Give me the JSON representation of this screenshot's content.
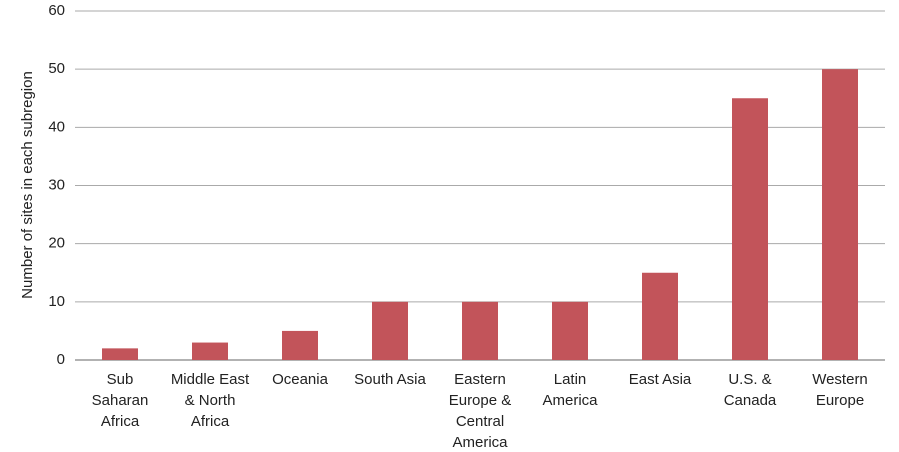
{
  "chart_data": {
    "type": "bar",
    "y_label": "Number of sites in each subregion",
    "categories": [
      "Sub Saharan Africa",
      "Middle East & North Africa",
      "Oceania",
      "South Asia",
      "Eastern Europe & Central America",
      "Latin America",
      "East Asia",
      "U.S. & Canada",
      "Western Europe"
    ],
    "values": [
      2,
      3,
      5,
      10,
      10,
      10,
      15,
      45,
      50
    ],
    "color": "#c2545a",
    "ylim": [
      0,
      60
    ],
    "yticks": [
      0,
      10,
      20,
      30,
      40,
      50,
      60
    ],
    "grid": true
  }
}
